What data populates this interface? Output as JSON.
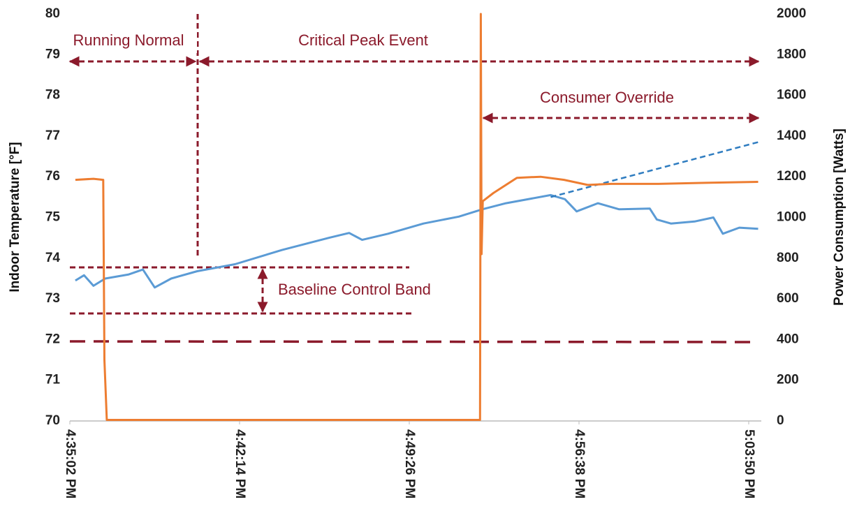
{
  "chart_data": {
    "type": "line",
    "y_label": "Indoor Temperature [°F]",
    "y2_label": "Power Consumption [Watts]",
    "xlim": [
      "4:35:02 PM",
      "5:04:22 PM"
    ],
    "xticks": [
      "4:35:02 PM",
      "4:42:14 PM",
      "4:49:26 PM",
      "4:56:38 PM",
      "5:03:50 PM"
    ],
    "ylim": [
      70,
      80
    ],
    "yticks": [
      70,
      71,
      72,
      73,
      74,
      75,
      76,
      77,
      78,
      79,
      80
    ],
    "y2lim": [
      0,
      2000
    ],
    "y2ticks": [
      0,
      200,
      400,
      600,
      800,
      1000,
      1200,
      1400,
      1600,
      1800,
      2000
    ],
    "annotations": [
      "Running Normal",
      "Critical Peak Event",
      "Consumer Override",
      "Baseline Control Band"
    ],
    "series": [
      {
        "color": "#5b9bd5",
        "dashed": false,
        "x": [
          "4:35:16 PM",
          "4:35:38 PM",
          "4:36:02 PM",
          "4:36:32 PM",
          "4:37:32 PM",
          "4:38:08 PM",
          "4:38:38 PM",
          "4:39:20 PM",
          "4:40:26 PM",
          "4:42:02 PM",
          "4:44:02 PM",
          "4:46:02 PM",
          "4:46:53 PM",
          "4:47:26 PM",
          "4:48:32 PM",
          "4:50:02 PM",
          "4:51:32 PM",
          "4:52:32 PM",
          "4:53:32 PM",
          "4:55:26 PM",
          "4:56:02 PM",
          "4:56:32 PM",
          "4:57:26 PM",
          "4:58:20 PM",
          "4:59:38 PM",
          "4:59:56 PM",
          "5:00:32 PM",
          "5:01:32 PM",
          "5:02:20 PM",
          "5:02:44 PM",
          "5:03:26 PM",
          "5:04:14 PM"
        ],
        "values": [
          73.45,
          73.58,
          73.32,
          73.5,
          73.6,
          73.72,
          73.28,
          73.5,
          73.68,
          73.85,
          74.2,
          74.5,
          74.62,
          74.45,
          74.6,
          74.85,
          75.02,
          75.2,
          75.35,
          75.55,
          75.45,
          75.15,
          75.35,
          75.2,
          75.22,
          74.95,
          74.85,
          74.9,
          75.0,
          74.6,
          74.75,
          74.72
        ]
      },
      {
        "color": "#2e7cc0",
        "dashed": true,
        "x": [
          "4:55:26 PM",
          "5:04:14 PM"
        ],
        "values": [
          75.5,
          76.85
        ]
      },
      {
        "color": "#ed7d31",
        "dashed": false,
        "axis": "y2",
        "x": [
          "4:35:16 PM",
          "4:36:02 PM",
          "4:36:27 PM",
          "4:36:30 PM",
          "4:36:36 PM",
          "4:40:00 PM",
          "4:45:00 PM",
          "4:50:00 PM",
          "4:52:26 PM",
          "4:52:28 PM",
          "4:52:30 PM",
          "4:52:33 PM",
          "4:53:00 PM",
          "4:54:00 PM",
          "4:55:00 PM",
          "4:56:00 PM",
          "4:57:00 PM",
          "4:58:00 PM",
          "5:00:00 PM",
          "5:02:00 PM",
          "5:04:14 PM"
        ],
        "values": [
          1185,
          1190,
          1185,
          300,
          5,
          5,
          5,
          5,
          5,
          2000,
          820,
          1080,
          1120,
          1195,
          1200,
          1185,
          1160,
          1165,
          1165,
          1170,
          1175
        ]
      }
    ]
  }
}
